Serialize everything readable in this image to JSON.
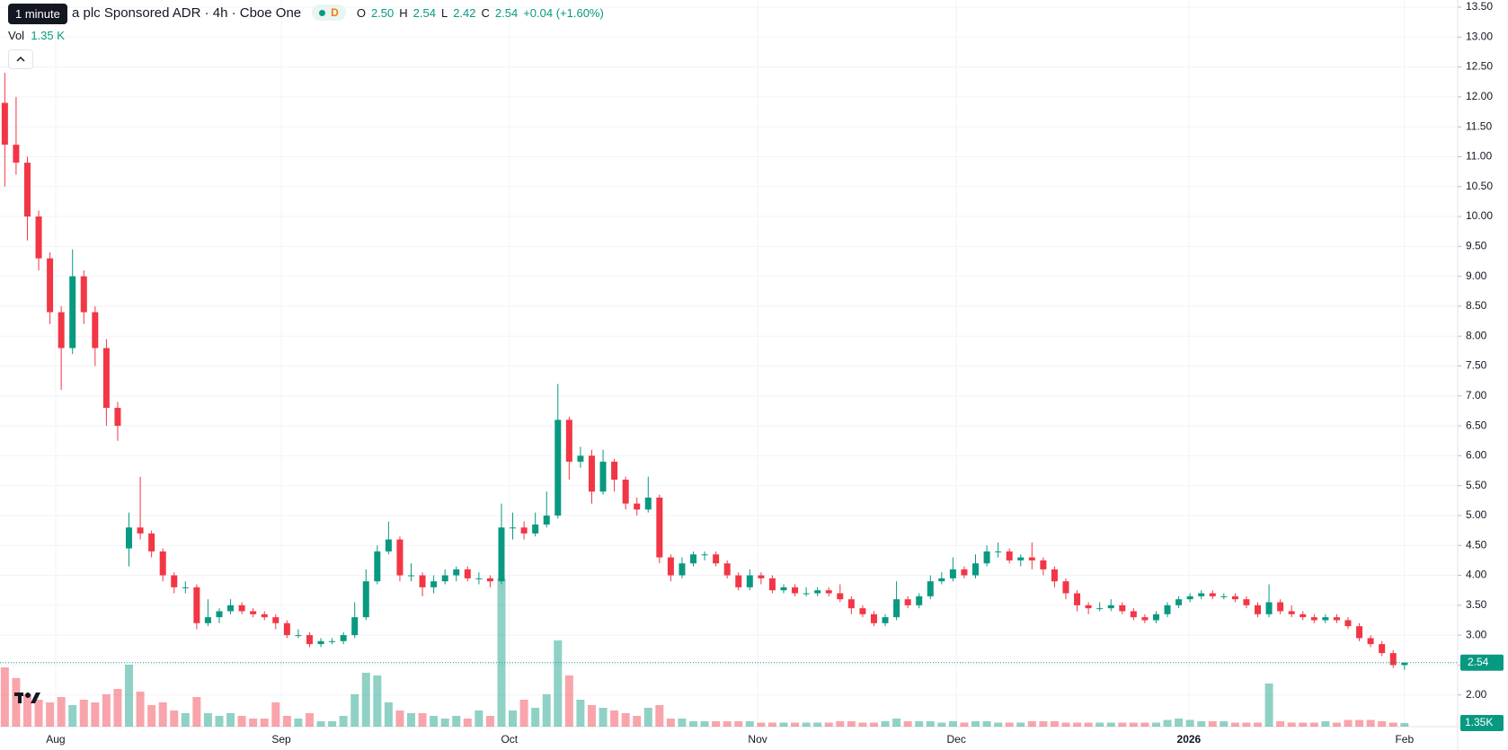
{
  "header": {
    "tooltip": "1 minute",
    "title": "a plc Sponsored ADR · 4h · Cboe One",
    "badge": "D",
    "o_label": "O",
    "o_value": "2.50",
    "h_label": "H",
    "h_value": "2.54",
    "l_label": "L",
    "l_value": "2.42",
    "c_label": "C",
    "c_value": "2.54",
    "change": "+0.04 (+1.60%)",
    "vol_label": "Vol",
    "vol_value": "1.35 K"
  },
  "chart_data": {
    "type": "candlestick",
    "up_color": "#089981",
    "down_color": "#f23645",
    "grid": true,
    "price_tag": "2.54",
    "volume_tag": "1.35K",
    "open": [
      11.9,
      11.2,
      10.9,
      10.0,
      9.3,
      8.4,
      7.8,
      9.0,
      8.4,
      7.8,
      6.8,
      4.45,
      4.8,
      4.7,
      4.4,
      4.0,
      3.8,
      3.8,
      3.2,
      3.3,
      3.4,
      3.5,
      3.4,
      3.35,
      3.3,
      3.2,
      3.0,
      3.0,
      2.85,
      2.9,
      2.9,
      3.0,
      3.3,
      3.9,
      4.4,
      4.6,
      4.0,
      4.0,
      3.8,
      3.9,
      4.0,
      4.1,
      3.95,
      3.95,
      3.9,
      4.8,
      4.8,
      4.7,
      4.85,
      5.0,
      6.6,
      5.9,
      6.0,
      5.4,
      5.9,
      5.6,
      5.2,
      5.1,
      5.3,
      4.3,
      4.0,
      4.2,
      4.35,
      4.35,
      4.2,
      4.0,
      3.8,
      4.0,
      3.95,
      3.75,
      3.8,
      3.7,
      3.7,
      3.75,
      3.7,
      3.6,
      3.45,
      3.35,
      3.2,
      3.3,
      3.6,
      3.5,
      3.65,
      3.9,
      3.95,
      4.1,
      4.0,
      4.2,
      4.4,
      4.4,
      4.25,
      4.3,
      4.25,
      4.1,
      3.9,
      3.7,
      3.5,
      3.45,
      3.45,
      3.5,
      3.4,
      3.3,
      3.25,
      3.35,
      3.5,
      3.6,
      3.65,
      3.7,
      3.65,
      3.65,
      3.6,
      3.5,
      3.35,
      3.55,
      3.4,
      3.35,
      3.3,
      3.25,
      3.3,
      3.25,
      3.15,
      2.95,
      2.85,
      2.7,
      2.5
    ],
    "close": [
      11.2,
      10.9,
      10.0,
      9.3,
      8.4,
      7.8,
      9.0,
      8.4,
      7.8,
      6.8,
      6.5,
      4.8,
      4.7,
      4.4,
      4.0,
      3.8,
      3.8,
      3.2,
      3.3,
      3.4,
      3.5,
      3.4,
      3.35,
      3.3,
      3.2,
      3.0,
      3.0,
      2.85,
      2.9,
      2.9,
      3.0,
      3.3,
      3.9,
      4.4,
      4.6,
      4.0,
      4.0,
      3.8,
      3.9,
      4.0,
      4.1,
      3.95,
      3.95,
      3.9,
      4.8,
      4.8,
      4.7,
      4.85,
      5.0,
      6.6,
      5.9,
      6.0,
      5.4,
      5.9,
      5.6,
      5.2,
      5.1,
      5.3,
      4.3,
      4.0,
      4.2,
      4.35,
      4.35,
      4.2,
      4.0,
      3.8,
      4.0,
      3.95,
      3.75,
      3.8,
      3.7,
      3.7,
      3.75,
      3.7,
      3.6,
      3.45,
      3.35,
      3.2,
      3.3,
      3.6,
      3.5,
      3.65,
      3.9,
      3.95,
      4.1,
      4.0,
      4.2,
      4.4,
      4.4,
      4.25,
      4.3,
      4.25,
      4.1,
      3.9,
      3.7,
      3.5,
      3.45,
      3.45,
      3.5,
      3.4,
      3.3,
      3.25,
      3.35,
      3.5,
      3.6,
      3.65,
      3.7,
      3.65,
      3.65,
      3.6,
      3.5,
      3.35,
      3.55,
      3.4,
      3.35,
      3.3,
      3.25,
      3.3,
      3.25,
      3.15,
      2.95,
      2.85,
      2.7,
      2.5,
      2.54
    ],
    "high": [
      12.4,
      12.0,
      11.0,
      10.1,
      9.4,
      8.5,
      9.45,
      9.1,
      8.5,
      7.95,
      6.9,
      5.05,
      5.65,
      4.75,
      4.45,
      4.05,
      3.9,
      3.85,
      3.6,
      3.45,
      3.6,
      3.55,
      3.45,
      3.4,
      3.35,
      3.25,
      3.1,
      3.05,
      2.95,
      2.95,
      3.05,
      3.55,
      4.1,
      4.5,
      4.9,
      4.65,
      4.2,
      4.05,
      4.0,
      4.1,
      4.15,
      4.15,
      4.05,
      4.0,
      5.2,
      5.05,
      4.9,
      5.05,
      5.4,
      7.2,
      6.65,
      6.15,
      6.1,
      6.1,
      5.95,
      5.65,
      5.3,
      5.65,
      5.35,
      4.35,
      4.3,
      4.4,
      4.4,
      4.4,
      4.25,
      4.05,
      4.1,
      4.05,
      4.0,
      3.85,
      3.85,
      3.8,
      3.8,
      3.8,
      3.85,
      3.65,
      3.5,
      3.4,
      3.35,
      3.9,
      3.65,
      3.7,
      4.0,
      4.05,
      4.3,
      4.15,
      4.35,
      4.5,
      4.55,
      4.45,
      4.35,
      4.55,
      4.3,
      4.15,
      3.95,
      3.75,
      3.55,
      3.55,
      3.6,
      3.55,
      3.45,
      3.35,
      3.4,
      3.55,
      3.65,
      3.7,
      3.75,
      3.75,
      3.7,
      3.7,
      3.65,
      3.55,
      3.85,
      3.6,
      3.5,
      3.4,
      3.35,
      3.35,
      3.35,
      3.3,
      3.2,
      3.0,
      2.9,
      2.75,
      2.54
    ],
    "low": [
      10.5,
      10.7,
      9.6,
      9.1,
      8.2,
      7.1,
      7.7,
      8.2,
      7.5,
      6.5,
      6.25,
      4.15,
      4.6,
      4.3,
      3.9,
      3.7,
      3.7,
      3.1,
      3.15,
      3.2,
      3.35,
      3.35,
      3.3,
      3.25,
      3.1,
      2.95,
      2.95,
      2.8,
      2.8,
      2.85,
      2.85,
      2.95,
      3.25,
      3.85,
      4.35,
      3.9,
      3.9,
      3.65,
      3.7,
      3.85,
      3.9,
      3.9,
      3.85,
      3.8,
      3.85,
      4.6,
      4.6,
      4.65,
      4.8,
      4.95,
      5.6,
      5.8,
      5.2,
      5.35,
      5.4,
      5.1,
      5.0,
      5.05,
      4.2,
      3.9,
      3.95,
      4.15,
      4.25,
      4.15,
      3.95,
      3.75,
      3.75,
      3.85,
      3.7,
      3.7,
      3.65,
      3.65,
      3.65,
      3.65,
      3.55,
      3.35,
      3.3,
      3.15,
      3.15,
      3.25,
      3.45,
      3.45,
      3.6,
      3.85,
      3.9,
      3.95,
      3.95,
      4.15,
      4.3,
      4.2,
      4.15,
      4.1,
      4.0,
      3.8,
      3.6,
      3.4,
      3.35,
      3.4,
      3.4,
      3.35,
      3.25,
      3.2,
      3.2,
      3.3,
      3.45,
      3.55,
      3.6,
      3.6,
      3.6,
      3.55,
      3.45,
      3.3,
      3.3,
      3.35,
      3.3,
      3.25,
      3.2,
      3.2,
      3.2,
      3.1,
      2.9,
      2.8,
      2.65,
      2.45,
      2.42
    ],
    "volume": [
      22,
      18,
      12,
      10,
      9,
      11,
      8,
      10,
      9,
      12,
      14,
      23,
      13,
      8,
      9,
      6,
      5,
      11,
      5,
      4,
      5,
      4,
      3,
      3,
      9,
      4,
      3,
      5,
      2,
      2,
      4,
      12,
      20,
      19,
      9,
      6,
      5,
      5,
      4,
      3,
      4,
      3,
      6,
      4,
      55,
      6,
      10,
      7,
      12,
      32,
      19,
      10,
      8,
      7,
      6,
      5,
      4,
      7,
      8,
      3,
      3,
      2,
      2,
      2,
      2,
      2,
      2,
      1.5,
      1.5,
      1.5,
      1.5,
      1.5,
      1.5,
      1.5,
      2,
      2,
      1.5,
      1.5,
      2,
      3,
      2,
      2,
      2,
      1.5,
      2,
      1.5,
      2,
      2,
      1.5,
      1.5,
      1.5,
      2,
      2,
      2,
      1.5,
      1.5,
      1.5,
      1.5,
      1.5,
      1.5,
      1.5,
      1.5,
      1.5,
      2.5,
      3,
      2.5,
      2,
      2,
      2,
      1.5,
      1.5,
      1.5,
      16,
      2,
      1.5,
      1.5,
      1.5,
      2,
      1.5,
      2.5,
      2.5,
      2.5,
      2,
      1.5,
      1.35
    ],
    "ylim": [
      1.47,
      13.62
    ],
    "yticks": [
      {
        "value": 2,
        "label": "2.00"
      },
      {
        "value": 2.5,
        "label": "2.50"
      },
      {
        "value": 3,
        "label": "3.00"
      },
      {
        "value": 3.5,
        "label": "3.50"
      },
      {
        "value": 4,
        "label": "4.00"
      },
      {
        "value": 4.5,
        "label": "4.50"
      },
      {
        "value": 5,
        "label": "5.00"
      },
      {
        "value": 5.5,
        "label": "5.50"
      },
      {
        "value": 6,
        "label": "6.00"
      },
      {
        "value": 6.5,
        "label": "6.50"
      },
      {
        "value": 7,
        "label": "7.00"
      },
      {
        "value": 7.5,
        "label": "7.50"
      },
      {
        "value": 8,
        "label": "8.00"
      },
      {
        "value": 8.5,
        "label": "8.50"
      },
      {
        "value": 9,
        "label": "9.00"
      },
      {
        "value": 9.5,
        "label": "9.50"
      },
      {
        "value": 10,
        "label": "10.00"
      },
      {
        "value": 10.5,
        "label": "10.50"
      },
      {
        "value": 11,
        "label": "11.00"
      },
      {
        "value": 11.5,
        "label": "11.50"
      },
      {
        "value": 12,
        "label": "12.00"
      },
      {
        "value": 12.5,
        "label": "12.50"
      },
      {
        "value": 13,
        "label": "13.00"
      },
      {
        "value": 13.5,
        "label": "13.50"
      }
    ],
    "xticks": [
      {
        "value": 4.5,
        "label": "Aug"
      },
      {
        "value": 24.5,
        "label": "Sep"
      },
      {
        "value": 44.7,
        "label": "Oct"
      },
      {
        "value": 66.7,
        "label": "Nov"
      },
      {
        "value": 84.3,
        "label": "Dec"
      },
      {
        "value": 104.9,
        "label": "2026"
      },
      {
        "value": 124,
        "label": "Feb"
      }
    ]
  }
}
